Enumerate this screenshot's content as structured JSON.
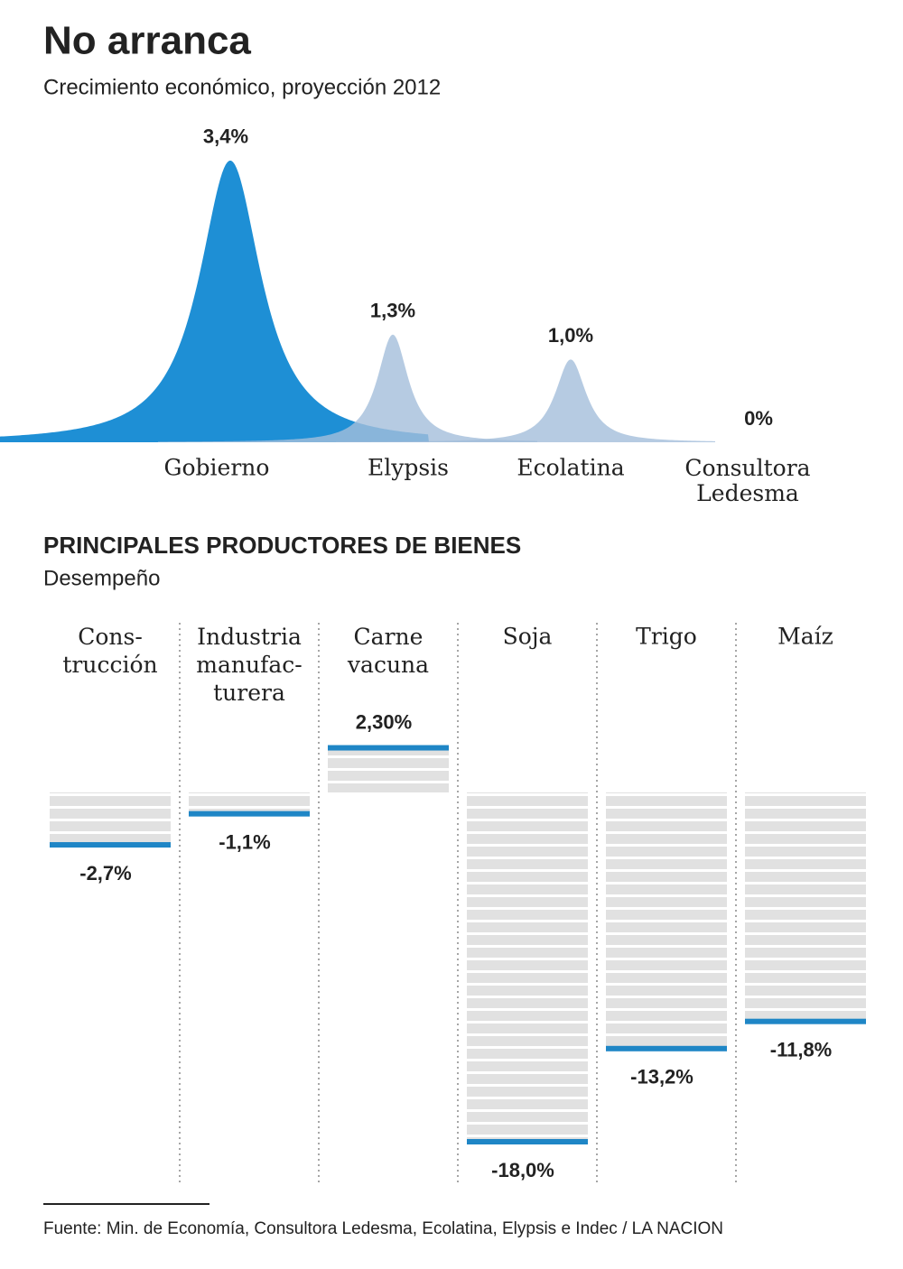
{
  "title": "No arranca",
  "chart_data": [
    {
      "type": "peaks",
      "subtitle": "Crecimiento económico, proyección 2012",
      "categories": [
        "Gobierno",
        "Elypsis",
        "Ecolatina",
        "Consultora\nLedesma"
      ],
      "values": [
        3.4,
        1.3,
        1.0,
        0
      ],
      "value_labels": [
        "3,4%",
        "1,3%",
        "1,0%",
        "0%"
      ],
      "colors": [
        "#1e8fd5",
        "#a4bedb",
        "#a4bedb",
        "#a4bedb"
      ]
    },
    {
      "type": "bar",
      "title": "PRINCIPALES PRODUCTORES DE BIENES",
      "subtitle": "Desempeño",
      "categories": [
        "Cons-\ntrucción",
        "Industria\nmanufac-\nturera",
        "Carne\nvacuna",
        "Soja",
        "Trigo",
        "Maíz"
      ],
      "values": [
        -2.7,
        -1.1,
        2.3,
        -18.0,
        -13.2,
        -11.8
      ],
      "value_labels": [
        "-2,7%",
        "-1,1%",
        "2,30%",
        "-18,0%",
        "-13,2%",
        "-11,8%"
      ],
      "color": "#1f86c6",
      "band_color": "#e1e1e1"
    }
  ],
  "source": "Fuente: Min. de Economía, Consultora Ledesma, Ecolatina, Elypsis e Indec / LA NACION"
}
